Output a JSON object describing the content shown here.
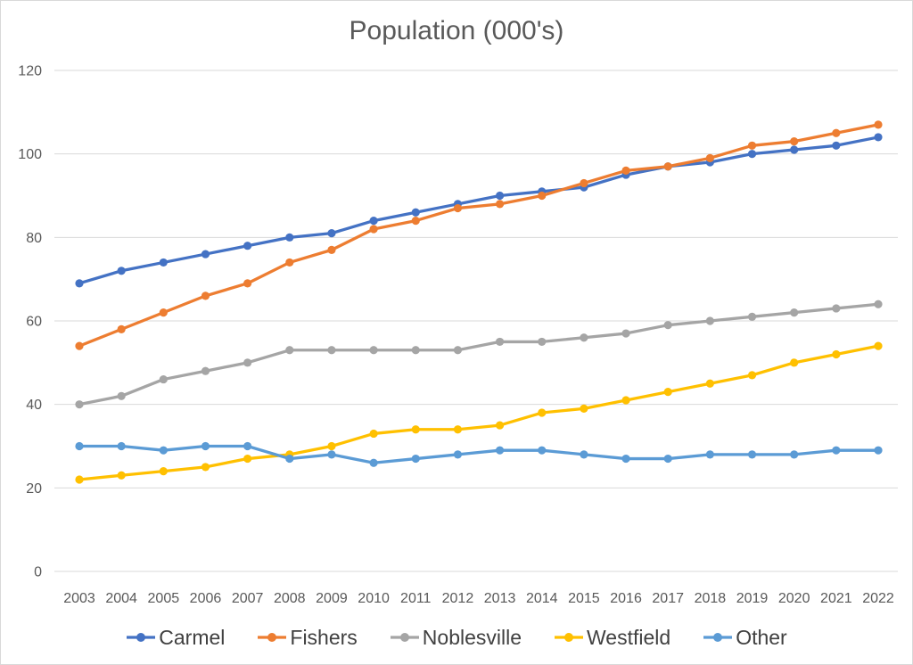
{
  "chart_data": {
    "type": "line",
    "title": "Population (000's)",
    "categories": [
      "2003",
      "2004",
      "2005",
      "2006",
      "2007",
      "2008",
      "2009",
      "2010",
      "2011",
      "2012",
      "2013",
      "2014",
      "2015",
      "2016",
      "2017",
      "2018",
      "2019",
      "2020",
      "2021",
      "2022"
    ],
    "series": [
      {
        "name": "Carmel",
        "color": "#4472C4",
        "values": [
          69,
          72,
          74,
          76,
          78,
          80,
          81,
          84,
          86,
          88,
          90,
          91,
          92,
          95,
          97,
          98,
          100,
          101,
          102,
          104
        ]
      },
      {
        "name": "Fishers",
        "color": "#ED7D31",
        "values": [
          54,
          58,
          62,
          66,
          69,
          74,
          77,
          82,
          84,
          87,
          88,
          90,
          93,
          96,
          97,
          99,
          102,
          103,
          105,
          107
        ]
      },
      {
        "name": "Noblesville",
        "color": "#A5A5A5",
        "values": [
          40,
          42,
          46,
          48,
          50,
          53,
          53,
          53,
          53,
          53,
          55,
          55,
          56,
          57,
          59,
          60,
          61,
          62,
          63,
          64
        ]
      },
      {
        "name": "Westfield",
        "color": "#FFC000",
        "values": [
          22,
          23,
          24,
          25,
          27,
          28,
          30,
          33,
          34,
          34,
          35,
          38,
          39,
          41,
          43,
          45,
          47,
          50,
          52,
          54
        ]
      },
      {
        "name": "Other",
        "color": "#5B9BD5",
        "values": [
          30,
          30,
          29,
          30,
          30,
          27,
          28,
          26,
          27,
          28,
          29,
          29,
          28,
          27,
          27,
          28,
          28,
          28,
          29,
          29
        ]
      }
    ],
    "xlabel": "",
    "ylabel": "",
    "y_ticks": [
      0,
      20,
      40,
      60,
      80,
      100,
      120
    ],
    "ylim": [
      0,
      120
    ],
    "grid": "horizontal",
    "legend_position": "bottom",
    "style": {
      "grid_color": "#D9D9D9",
      "axis_text_color": "#595959",
      "title_color": "#595959",
      "legend_text_color": "#404040",
      "border_color": "#D9D9D9",
      "background": "#FFFFFF"
    }
  }
}
